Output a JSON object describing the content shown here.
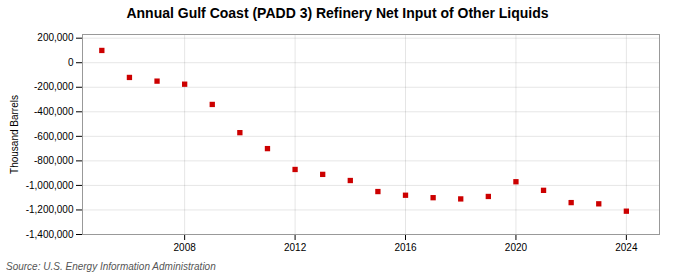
{
  "chart_data": {
    "type": "scatter",
    "title": "Annual Gulf Coast (PADD 3) Refinery Net Input of Other Liquids",
    "ylabel": "Thousand Barrels",
    "source": "Source: U.S. Energy Information Administration",
    "x": [
      2005,
      2006,
      2007,
      2008,
      2009,
      2010,
      2011,
      2012,
      2013,
      2014,
      2015,
      2016,
      2017,
      2018,
      2019,
      2020,
      2021,
      2022,
      2023,
      2024
    ],
    "values": [
      100000,
      -120000,
      -150000,
      -175000,
      -340000,
      -570000,
      -700000,
      -870000,
      -910000,
      -960000,
      -1050000,
      -1080000,
      -1100000,
      -1110000,
      -1090000,
      -970000,
      -1040000,
      -1140000,
      -1150000,
      -1210000
    ],
    "color": "#cc0000",
    "marker": "square",
    "grid": true,
    "xlim": [
      2004.3,
      2025.2
    ],
    "xticks": [
      2008,
      2012,
      2016,
      2020,
      2024
    ],
    "ylim": [
      -1400000,
      230000
    ],
    "yticks": [
      {
        "value": 200000,
        "label": "200,000"
      },
      0,
      {
        "value": -200000,
        "label": "-200,000"
      },
      {
        "value": -400000,
        "label": "-400,000"
      },
      {
        "value": -600000,
        "label": "-600,000"
      },
      {
        "value": -800000,
        "label": "-800,000"
      },
      {
        "value": -1000000,
        "label": "-1,000,000"
      },
      {
        "value": -1200000,
        "label": "-1,200,000"
      },
      {
        "value": -1400000,
        "label": "-1,400,000"
      }
    ]
  }
}
